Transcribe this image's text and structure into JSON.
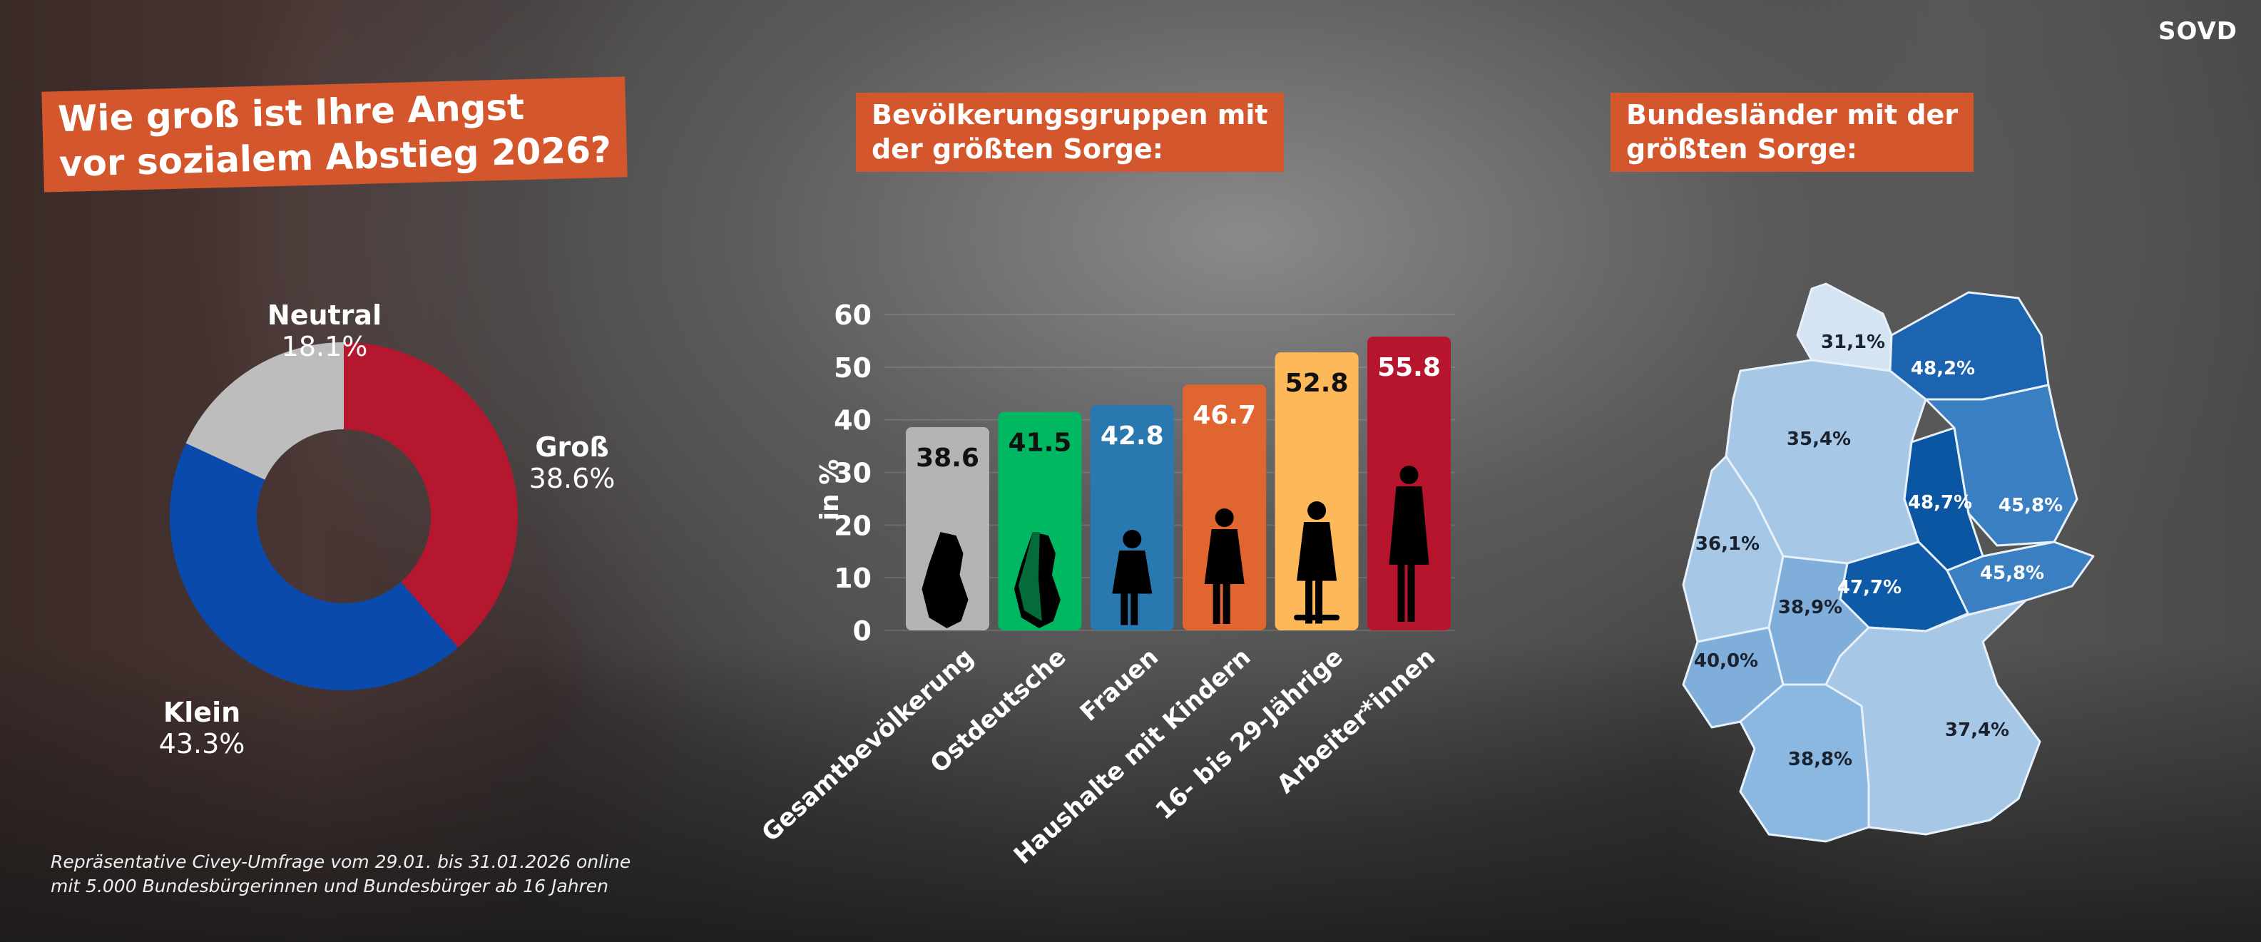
{
  "logo": "SOVD",
  "footnote": [
    "Repräsentative Civey-Umfrage vom 29.01. bis 31.01.2026 online",
    "mit 5.000 Bundesbürgerinnen und Bundesbürger ab 16 Jahren"
  ],
  "chart_data": [
    {
      "type": "pie",
      "title": [
        "Wie groß ist Ihre Angst",
        "vor sozialem Abstieg 2026?"
      ],
      "slices": [
        {
          "label": "Groß",
          "value": 38.6,
          "value_label": "38.6%",
          "color": "#b5172f"
        },
        {
          "label": "Klein",
          "value": 43.3,
          "value_label": "43.3%",
          "color": "#0a4aad"
        },
        {
          "label": "Neutral",
          "value": 18.1,
          "value_label": "18.1%",
          "color": "#bdbdbd"
        }
      ]
    },
    {
      "type": "bar",
      "title": [
        "Bevölkerungsgruppen mit",
        "der größten Sorge:"
      ],
      "ylabel": "in %",
      "ylim": [
        0,
        60
      ],
      "yticks": [
        "0",
        "10",
        "20",
        "30",
        "40",
        "50",
        "60"
      ],
      "categories": [
        "Gesamtbevölkerung",
        "Ostdeutsche",
        "Frauen",
        "Haushalte mit Kindern",
        "16- bis 29-Jährige",
        "Arbeiter*innen"
      ],
      "values": [
        38.6,
        41.5,
        42.8,
        46.7,
        52.8,
        55.8
      ],
      "value_labels": [
        "38.6",
        "41.5",
        "42.8",
        "46.7",
        "52.8",
        "55.8"
      ],
      "colors": [
        "#b4b4b4",
        "#00b862",
        "#2978b0",
        "#e06530",
        "#fdb959",
        "#b7142d"
      ],
      "label_colors": [
        "#111",
        "#111",
        "#fff",
        "#fff",
        "#111",
        "#fff"
      ],
      "icons": [
        "germany-map-icon",
        "east-germany-map-icon",
        "woman-icon",
        "parent-child-icon",
        "skateboarder-icon",
        "worker-icon"
      ]
    },
    {
      "type": "map",
      "title": [
        "Bundesländer mit der",
        "größten Sorge:"
      ],
      "regions": [
        {
          "value_label": "31,1%",
          "value": 31.1,
          "color": "#d4e4f2"
        },
        {
          "value_label": "48,2%",
          "value": 48.2,
          "color": "#1c63b0"
        },
        {
          "value_label": "35,4%",
          "value": 35.4,
          "color": "#a6c8e6"
        },
        {
          "value_label": "48,7%",
          "value": 48.7,
          "color": "#0b56a3"
        },
        {
          "value_label": "45,8%",
          "value": 45.8,
          "color": "#3a7fc1"
        },
        {
          "value_label": "36,1%",
          "value": 36.1,
          "color": "#a6c8e6"
        },
        {
          "value_label": "47,7%",
          "value": 47.7,
          "color": "#0e5aa7"
        },
        {
          "value_label": "45,8%",
          "value": 45.8,
          "color": "#3a7fc1"
        },
        {
          "value_label": "38,9%",
          "value": 38.9,
          "color": "#7eaed9"
        },
        {
          "value_label": "40,0%",
          "value": 40.0,
          "color": "#7eaed9"
        },
        {
          "value_label": "37,4%",
          "value": 37.4,
          "color": "#a6c8e6"
        },
        {
          "value_label": "38,8%",
          "value": 38.8,
          "color": "#8bb8e0"
        }
      ]
    }
  ]
}
